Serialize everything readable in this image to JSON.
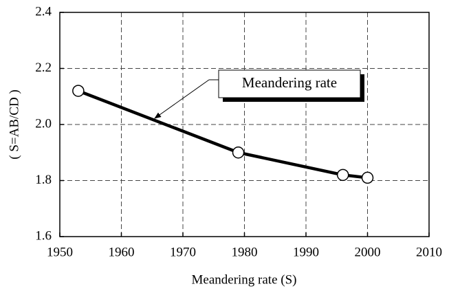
{
  "chart_data": {
    "type": "line",
    "xlabel": "Meandering rate (S)",
    "ylabel": "( S=AB/CD )",
    "annotation": "Meandering rate",
    "series": [
      {
        "name": "Meandering rate",
        "color": "#000000",
        "x": [
          1953,
          1979,
          1996,
          2000
        ],
        "values": [
          2.12,
          1.9,
          1.82,
          1.81
        ]
      }
    ],
    "xlim": [
      1950,
      2010
    ],
    "xticks": [
      1950,
      1960,
      1970,
      1980,
      1990,
      2000,
      2010
    ],
    "ylim": [
      1.6,
      2.4
    ],
    "yticks": [
      2.4,
      2.2,
      {
        "value": 2.0,
        "label": "2.0"
      },
      1.8,
      1.6
    ],
    "grid": true
  }
}
